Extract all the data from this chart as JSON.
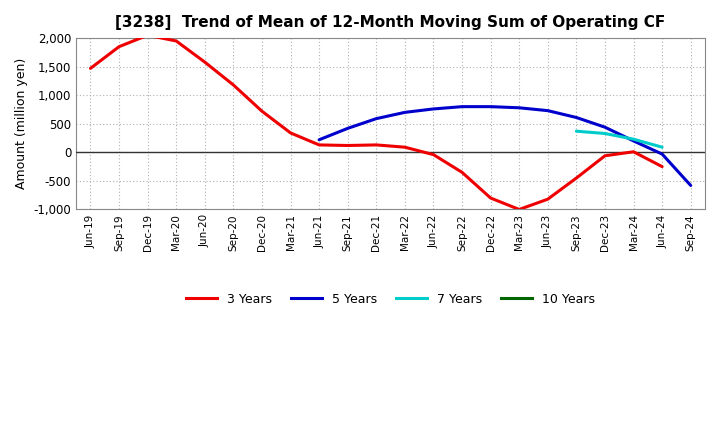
{
  "title": "[3238]  Trend of Mean of 12-Month Moving Sum of Operating CF",
  "ylabel": "Amount (million yen)",
  "background_color": "#ffffff",
  "grid_color": "#b0b0b0",
  "ylim": [
    -1000,
    2000
  ],
  "yticks": [
    -1000,
    -500,
    0,
    500,
    1000,
    1500,
    2000
  ],
  "x_labels": [
    "Jun-19",
    "Sep-19",
    "Dec-19",
    "Mar-20",
    "Jun-20",
    "Sep-20",
    "Dec-20",
    "Mar-21",
    "Jun-21",
    "Sep-21",
    "Dec-21",
    "Mar-22",
    "Jun-22",
    "Sep-22",
    "Dec-22",
    "Mar-23",
    "Jun-23",
    "Sep-23",
    "Dec-23",
    "Mar-24",
    "Jun-24",
    "Sep-24"
  ],
  "series": {
    "3 Years": {
      "color": "#ee0000",
      "points": [
        [
          0,
          1470
        ],
        [
          1,
          1850
        ],
        [
          2,
          2050
        ],
        [
          3,
          1950
        ],
        [
          4,
          1580
        ],
        [
          5,
          1180
        ],
        [
          6,
          720
        ],
        [
          7,
          340
        ],
        [
          8,
          130
        ],
        [
          9,
          120
        ],
        [
          10,
          130
        ],
        [
          11,
          90
        ],
        [
          12,
          -40
        ],
        [
          13,
          -350
        ],
        [
          14,
          -800
        ],
        [
          15,
          -1000
        ],
        [
          16,
          -820
        ],
        [
          17,
          -450
        ],
        [
          18,
          -60
        ],
        [
          19,
          10
        ],
        [
          20,
          -250
        ]
      ]
    },
    "5 Years": {
      "color": "#0000cc",
      "points": [
        [
          8,
          220
        ],
        [
          9,
          420
        ],
        [
          10,
          590
        ],
        [
          11,
          700
        ],
        [
          12,
          760
        ],
        [
          13,
          800
        ],
        [
          14,
          800
        ],
        [
          15,
          780
        ],
        [
          16,
          730
        ],
        [
          17,
          610
        ],
        [
          18,
          440
        ],
        [
          19,
          200
        ],
        [
          20,
          -30
        ],
        [
          21,
          -580
        ]
      ]
    },
    "7 Years": {
      "color": "#00cccc",
      "points": [
        [
          17,
          370
        ],
        [
          18,
          330
        ],
        [
          19,
          230
        ],
        [
          20,
          90
        ]
      ]
    },
    "10 Years": {
      "color": "#006600",
      "points": []
    }
  },
  "legend_labels": [
    "3 Years",
    "5 Years",
    "7 Years",
    "10 Years"
  ],
  "legend_colors": [
    "#ee0000",
    "#0000cc",
    "#00cccc",
    "#006600"
  ]
}
